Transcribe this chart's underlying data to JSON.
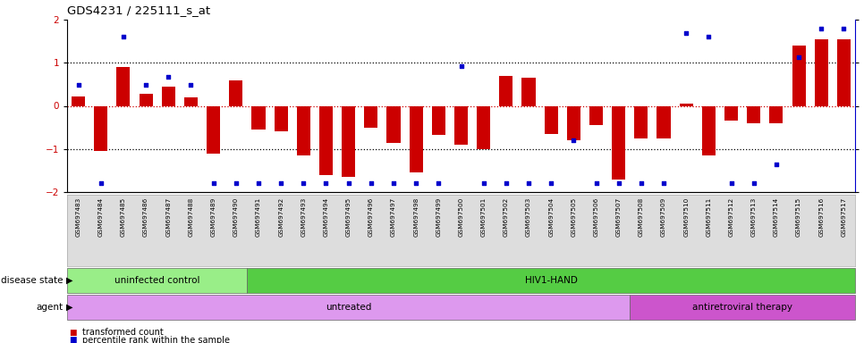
{
  "title": "GDS4231 / 225111_s_at",
  "samples": [
    "GSM697483",
    "GSM697484",
    "GSM697485",
    "GSM697486",
    "GSM697487",
    "GSM697488",
    "GSM697489",
    "GSM697490",
    "GSM697491",
    "GSM697492",
    "GSM697493",
    "GSM697494",
    "GSM697495",
    "GSM697496",
    "GSM697497",
    "GSM697498",
    "GSM697499",
    "GSM697500",
    "GSM697501",
    "GSM697502",
    "GSM697503",
    "GSM697504",
    "GSM697505",
    "GSM697506",
    "GSM697507",
    "GSM697508",
    "GSM697509",
    "GSM697510",
    "GSM697511",
    "GSM697512",
    "GSM697513",
    "GSM697514",
    "GSM697515",
    "GSM697516",
    "GSM697517"
  ],
  "bar_values": [
    0.22,
    -1.05,
    0.9,
    0.27,
    0.45,
    0.2,
    -1.1,
    0.6,
    -0.55,
    -0.6,
    -1.15,
    -1.6,
    -1.65,
    -0.5,
    -0.85,
    -1.55,
    -0.68,
    -0.9,
    -1.0,
    0.7,
    0.65,
    -0.65,
    -0.8,
    -0.45,
    -1.7,
    -0.75,
    -0.75,
    0.05,
    -1.15,
    -0.35,
    -0.4,
    -0.4,
    1.4,
    1.55,
    1.55
  ],
  "percentile_values": [
    62,
    5,
    90,
    62,
    67,
    62,
    5,
    5,
    5,
    5,
    5,
    5,
    5,
    5,
    5,
    5,
    5,
    73,
    5,
    5,
    5,
    5,
    30,
    5,
    5,
    5,
    5,
    92,
    90,
    5,
    5,
    16,
    78,
    95,
    95
  ],
  "ylim": [
    -2,
    2
  ],
  "y2lim": [
    0,
    100
  ],
  "yticks_left": [
    -2,
    -1,
    0,
    1,
    2
  ],
  "y2ticks": [
    0,
    25,
    50,
    75,
    100
  ],
  "bar_color": "#cc0000",
  "dot_color": "#0000cc",
  "zero_line_color": "#cc0000",
  "grid_line_color": "#000000",
  "disease_state_groups": [
    {
      "label": "uninfected control",
      "start": 0,
      "end": 8,
      "color": "#99ee88"
    },
    {
      "label": "HIV1-HAND",
      "start": 8,
      "end": 35,
      "color": "#55cc44"
    }
  ],
  "agent_groups": [
    {
      "label": "untreated",
      "start": 0,
      "end": 25,
      "color": "#dd99ee"
    },
    {
      "label": "antiretroviral therapy",
      "start": 25,
      "end": 35,
      "color": "#cc55cc"
    }
  ],
  "legend_items": [
    {
      "color": "#cc0000",
      "label": "transformed count"
    },
    {
      "color": "#0000cc",
      "label": "percentile rank within the sample"
    }
  ],
  "label_color_ds": "disease state",
  "label_color_ag": "agent",
  "bg_color": "#ffffff",
  "tick_bg": "#dddddd"
}
